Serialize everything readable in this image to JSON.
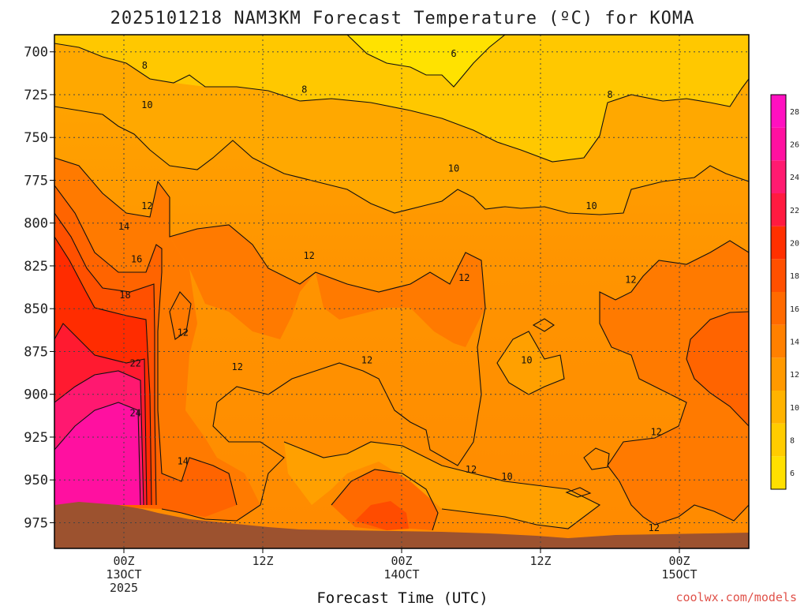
{
  "chart_data": {
    "type": "heatmap",
    "title": "2025101218 NAM3KM Forecast Temperature (ºC) for KOMA",
    "xlabel": "Forecast Time (UTC)",
    "ylabel": "",
    "credit": "coolwx.com/models",
    "y_axis": {
      "ticks": [
        700,
        725,
        750,
        775,
        800,
        825,
        850,
        875,
        900,
        925,
        950,
        975
      ],
      "range": [
        690,
        990
      ],
      "inverted": true
    },
    "x_axis": {
      "ticks": [
        {
          "hour": 6,
          "lines": [
            "00Z",
            "13OCT",
            "2025"
          ]
        },
        {
          "hour": 18,
          "lines": [
            "12Z"
          ]
        },
        {
          "hour": 30,
          "lines": [
            "00Z",
            "14OCT"
          ]
        },
        {
          "hour": 42,
          "lines": [
            "12Z"
          ]
        },
        {
          "hour": 54,
          "lines": [
            "00Z",
            "15OCT"
          ]
        }
      ],
      "range": [
        0,
        60
      ]
    },
    "grid": true,
    "colorbar": {
      "levels": [
        6,
        8,
        10,
        12,
        14,
        16,
        18,
        20,
        22,
        24,
        26,
        28
      ],
      "colors": [
        "#ffe000",
        "#ffcc00",
        "#ffb300",
        "#ff9900",
        "#ff8000",
        "#ff6a00",
        "#ff5000",
        "#ff3000",
        "#ff1a40",
        "#ff1a70",
        "#ff10a0",
        "#ff10c0"
      ]
    },
    "isotherm_labels": [
      {
        "text": "8",
        "hour": 7.8,
        "p": 708
      },
      {
        "text": "6",
        "hour": 34.5,
        "p": 701
      },
      {
        "text": "8",
        "hour": 21.6,
        "p": 722
      },
      {
        "text": "8",
        "hour": 48.0,
        "p": 725
      },
      {
        "text": "10",
        "hour": 8.0,
        "p": 731
      },
      {
        "text": "10",
        "hour": 34.5,
        "p": 768
      },
      {
        "text": "10",
        "hour": 46.4,
        "p": 790
      },
      {
        "text": "12",
        "hour": 8.0,
        "p": 790
      },
      {
        "text": "14",
        "hour": 6.0,
        "p": 802
      },
      {
        "text": "16",
        "hour": 7.1,
        "p": 821
      },
      {
        "text": "18",
        "hour": 6.1,
        "p": 842
      },
      {
        "text": "22",
        "hour": 7.0,
        "p": 882
      },
      {
        "text": "24",
        "hour": 7.0,
        "p": 911
      },
      {
        "text": "12",
        "hour": 11.1,
        "p": 864
      },
      {
        "text": "12",
        "hour": 22.0,
        "p": 819
      },
      {
        "text": "12",
        "hour": 35.4,
        "p": 832
      },
      {
        "text": "12",
        "hour": 49.8,
        "p": 833
      },
      {
        "text": "12",
        "hour": 15.8,
        "p": 884
      },
      {
        "text": "12",
        "hour": 27.0,
        "p": 880
      },
      {
        "text": "12",
        "hour": 36.0,
        "p": 944
      },
      {
        "text": "12",
        "hour": 52.0,
        "p": 922
      },
      {
        "text": "12",
        "hour": 51.8,
        "p": 978
      },
      {
        "text": "10",
        "hour": 40.8,
        "p": 880
      },
      {
        "text": "10",
        "hour": 39.1,
        "p": 948
      },
      {
        "text": "14",
        "hour": 11.1,
        "p": 939
      }
    ]
  }
}
